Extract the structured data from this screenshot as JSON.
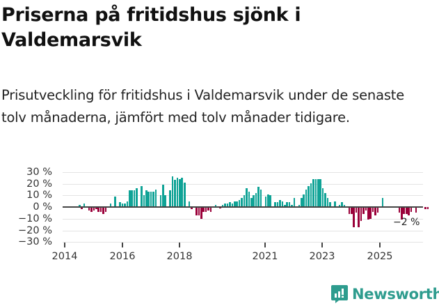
{
  "header": {
    "title": "Priserna på fritidshus sjönk i Valdemarsvik",
    "subtitle": "Prisutveckling för fritidshus i Valdemarsvik under de senaste tolv månaderna, jämfört med tolv månader tidigare."
  },
  "brand": {
    "name": "Newsworthy",
    "color": "#2e9c8e",
    "icon": "bar-chart-speech-bubble-icon"
  },
  "colors": {
    "positive": "#0fa396",
    "negative": "#9a0039",
    "grid": "#e3e3e3",
    "axis": "#444444"
  },
  "chart_data": {
    "type": "bar",
    "title": "Priserna på fritidshus sjönk i Valdemarsvik",
    "xlabel": "",
    "ylabel": "",
    "ylim": [
      -30,
      30
    ],
    "yticks": [
      "30 %",
      "20 %",
      "10 %",
      "0 %",
      "−10 %",
      "−20 %",
      "−30 %"
    ],
    "xticks": [
      "2014",
      "2016",
      "2018",
      "2021",
      "2023",
      "2025"
    ],
    "grid": true,
    "annotation": "−2 %",
    "start": "2014-07",
    "frequency": "monthly",
    "values": [
      2,
      -2,
      3,
      null,
      -3,
      -4,
      -3,
      -2,
      -4,
      -4,
      -6,
      -4,
      null,
      3,
      null,
      9,
      null,
      4,
      3,
      3,
      5,
      14,
      14,
      14,
      16,
      null,
      18,
      10,
      14,
      13,
      13,
      13,
      15,
      null,
      10,
      19,
      10,
      null,
      14,
      26,
      23,
      25,
      24,
      25,
      21,
      null,
      5,
      -2,
      null,
      -7,
      -7,
      -10,
      -4,
      -4,
      -3,
      -4,
      null,
      2,
      null,
      -1,
      2,
      3,
      3,
      4,
      3,
      5,
      5,
      6,
      8,
      10,
      16,
      13,
      8,
      10,
      12,
      17,
      15,
      null,
      9,
      11,
      10,
      null,
      4,
      4,
      6,
      5,
      2,
      4,
      4,
      2,
      8,
      null,
      2,
      8,
      11,
      15,
      18,
      20,
      24,
      24,
      24,
      24,
      16,
      12,
      8,
      4,
      null,
      5,
      null,
      2,
      4,
      2,
      null,
      -6,
      -6,
      -17,
      -5,
      -17,
      -12,
      -6,
      -3,
      -11,
      -10,
      -4,
      -7,
      -5,
      null,
      8,
      null,
      null,
      null,
      null,
      null,
      null,
      -5,
      -11,
      -6,
      -6,
      -7,
      -4,
      null,
      -5,
      null,
      null,
      null,
      -2,
      -2,
      null
    ],
    "last_value": -2
  }
}
